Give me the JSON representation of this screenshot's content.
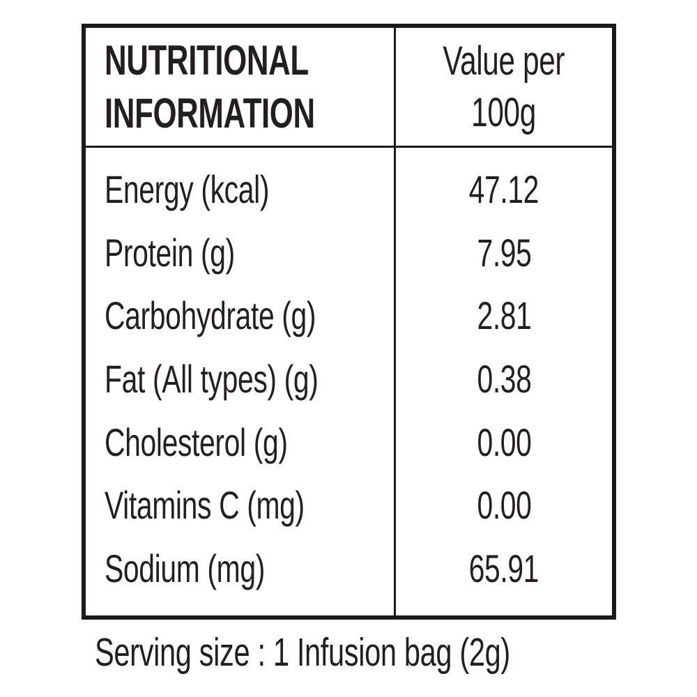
{
  "colors": {
    "background": "#ffffff",
    "text": "#231f20",
    "border": "#1b1b19"
  },
  "table": {
    "header": {
      "title_line1": "NUTRITIONAL",
      "title_line2": "INFORMATION",
      "value_col_line1": "Value per",
      "value_col_line2": "100g"
    },
    "rows": [
      {
        "label": "Energy (kcal)",
        "value": "47.12"
      },
      {
        "label": "Protein (g)",
        "value": "7.95"
      },
      {
        "label": "Carbohydrate (g)",
        "value": "2.81"
      },
      {
        "label": "Fat (All types) (g)",
        "value": "0.38"
      },
      {
        "label": "Cholesterol (g)",
        "value": "0.00"
      },
      {
        "label": "Vitamins C (mg)",
        "value": "0.00"
      },
      {
        "label": "Sodium (mg)",
        "value": "65.91"
      }
    ],
    "footer": "Serving size : 1 Infusion bag (2g)"
  }
}
